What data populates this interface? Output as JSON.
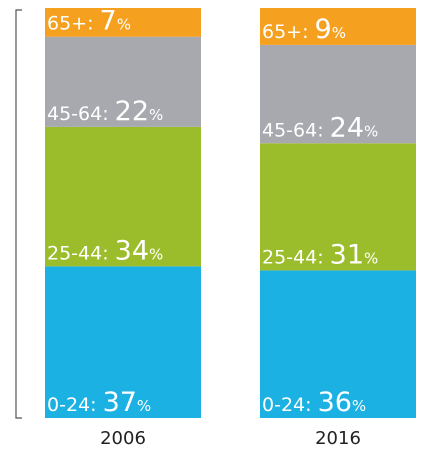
{
  "chart_data": {
    "type": "stacked_bar",
    "categories": [
      "2006",
      "2016"
    ],
    "series": [
      {
        "color": "#1bb1e3",
        "values": [
          37,
          36
        ],
        "value_labels": [
          "0-24: 37%",
          "0-24: 36%"
        ]
      },
      {
        "color": "#9cbd2b",
        "values": [
          34,
          31
        ],
        "value_labels": [
          "25-44: 34%",
          "25-44: 31%"
        ]
      },
      {
        "color": "#a7a9ae",
        "values": [
          22,
          24
        ],
        "value_labels": [
          "45-64: 22%",
          "45-64: 24%"
        ]
      },
      {
        "color": "#f5a01f",
        "values": [
          7,
          9
        ],
        "value_labels": [
          "65+: 7%",
          "65+: 9%"
        ]
      }
    ],
    "ylim": [
      0,
      100
    ]
  }
}
